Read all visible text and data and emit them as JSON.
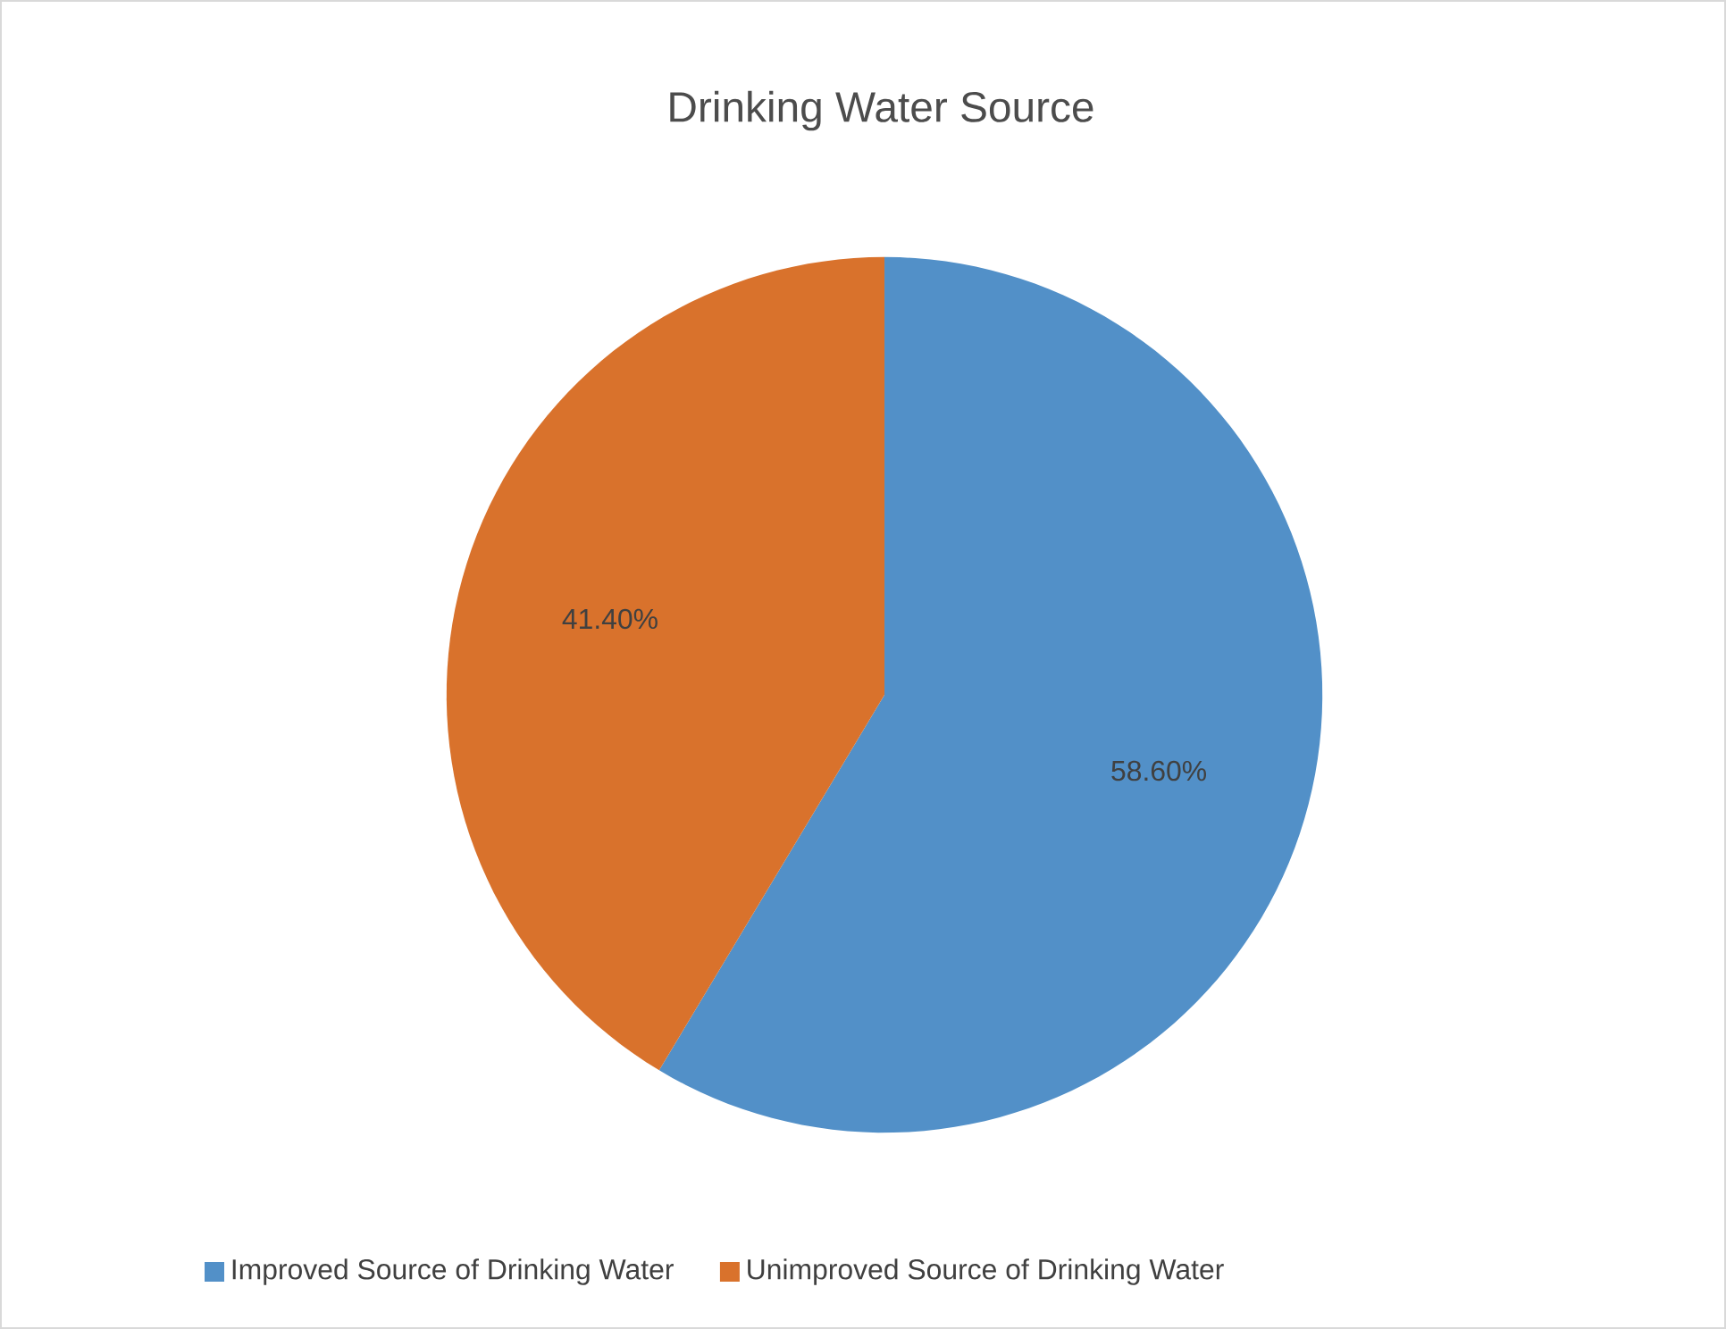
{
  "chart_data": {
    "type": "pie",
    "title": "Drinking Water Source",
    "categories": [
      "Improved Source of Drinking Water",
      "Unimproved Source of Drinking Water"
    ],
    "values": [
      58.6,
      41.4
    ],
    "colors": [
      "#5290c8",
      "#d9722c"
    ],
    "value_labels": [
      "58.60%",
      "41.40%"
    ],
    "legend": "bottom"
  }
}
